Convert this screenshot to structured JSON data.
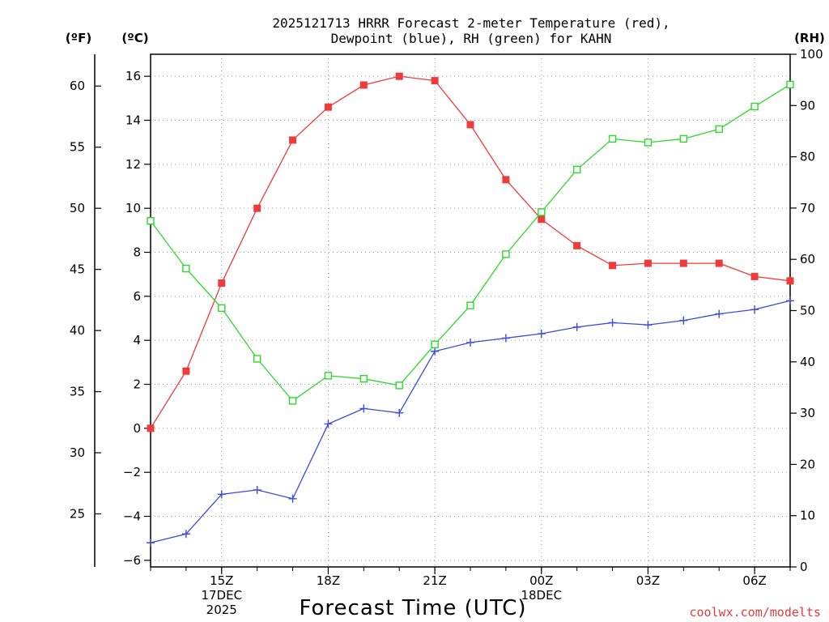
{
  "chart_data": {
    "type": "line",
    "title": [
      "2025121713 HRRR Forecast 2-meter Temperature (red),",
      "Dewpoint (blue), RH (green) for KAHN"
    ],
    "xlabel": "Forecast Time (UTC)",
    "units": {
      "fahrenheit": "(ºF)",
      "celsius": "(ºC)",
      "rh": "(RH)"
    },
    "x": [
      13,
      14,
      15,
      16,
      17,
      18,
      19,
      20,
      21,
      22,
      23,
      24,
      25,
      26,
      27,
      28,
      29,
      30,
      31
    ],
    "xlim": [
      13,
      31
    ],
    "x_ticks": [
      {
        "x": 15,
        "lines": [
          "15Z",
          "17DEC",
          "2025"
        ]
      },
      {
        "x": 18,
        "lines": [
          "18Z"
        ]
      },
      {
        "x": 21,
        "lines": [
          "21Z"
        ]
      },
      {
        "x": 24,
        "lines": [
          "00Z",
          "18DEC"
        ]
      },
      {
        "x": 27,
        "lines": [
          "03Z"
        ]
      },
      {
        "x": 30,
        "lines": [
          "06Z"
        ]
      }
    ],
    "y_celsius": {
      "lim": [
        -6.3,
        17.0
      ],
      "ticks": [
        -6,
        -4,
        -2,
        0,
        2,
        4,
        6,
        8,
        10,
        12,
        14,
        16
      ]
    },
    "y_fahrenheit": {
      "ticks": [
        25,
        30,
        35,
        40,
        45,
        50,
        55,
        60
      ]
    },
    "y_rh": {
      "lim": [
        0,
        100
      ],
      "ticks": [
        0,
        10,
        20,
        30,
        40,
        50,
        60,
        70,
        80,
        90,
        100
      ]
    },
    "series": [
      {
        "name": "2-meter Temperature",
        "axis": "celsius",
        "color": "#ef3b3b",
        "marker": "filled-square",
        "values": [
          0.0,
          2.6,
          6.6,
          10.0,
          13.1,
          14.6,
          15.6,
          16.0,
          15.8,
          13.8,
          11.3,
          9.5,
          8.3,
          7.4,
          7.5,
          7.5,
          7.5,
          6.9,
          6.7
        ]
      },
      {
        "name": "Dewpoint",
        "axis": "celsius",
        "color": "#3b4bdb",
        "marker": "plus",
        "values": [
          -5.2,
          -4.8,
          -3.0,
          -2.8,
          -3.2,
          0.2,
          0.9,
          0.7,
          3.5,
          3.9,
          4.1,
          4.3,
          4.6,
          4.8,
          4.7,
          4.9,
          5.2,
          5.4,
          5.8
        ]
      },
      {
        "name": "RH",
        "axis": "rh",
        "color": "#2bd92b",
        "marker": "open-square",
        "values": [
          67.5,
          58.2,
          50.5,
          40.6,
          32.4,
          37.3,
          36.7,
          35.4,
          43.4,
          51.0,
          61.0,
          69.2,
          77.5,
          83.5,
          82.8,
          83.5,
          85.4,
          89.8,
          94.1
        ]
      }
    ],
    "grid": true
  },
  "credit": "coolwx.com/modelts"
}
